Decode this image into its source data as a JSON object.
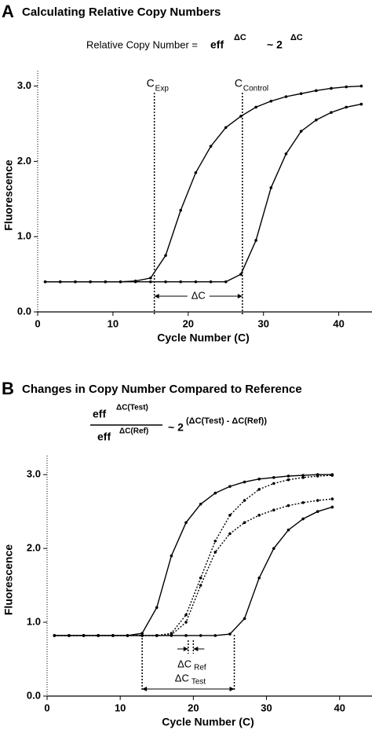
{
  "chart_data": [
    {
      "type": "line",
      "panel": "A",
      "title": "Calculating Relative Copy Numbers",
      "formula": [
        "Relative Copy Number =",
        "eff",
        "ΔC",
        "~ 2",
        "ΔC"
      ],
      "x_label": "Cycle Number (C)",
      "y_label": "Fluorescence",
      "xlim": [
        0,
        44
      ],
      "ylim": [
        0,
        3.1
      ],
      "xticks": [
        0,
        10,
        20,
        30,
        40
      ],
      "yticks": [
        {
          "value": 0,
          "label": "0.0"
        },
        {
          "value": 1,
          "label": "1.0"
        },
        {
          "value": 2,
          "label": "2.0"
        },
        {
          "value": 3,
          "label": "3.0"
        }
      ],
      "x": [
        1,
        3,
        5,
        7,
        9,
        11,
        13,
        15,
        17,
        19,
        21,
        23,
        25,
        27,
        29,
        31,
        33,
        35,
        37,
        39,
        41,
        43
      ],
      "series": [
        {
          "color": "#000000",
          "dash": "solid",
          "values": [
            0.4,
            0.4,
            0.4,
            0.4,
            0.4,
            0.4,
            0.41,
            0.45,
            0.75,
            1.35,
            1.85,
            2.2,
            2.45,
            2.6,
            2.72,
            2.8,
            2.86,
            2.9,
            2.94,
            2.97,
            2.99,
            3.0
          ]
        },
        {
          "color": "#000000",
          "dash": "solid",
          "values": [
            0.4,
            0.4,
            0.4,
            0.4,
            0.4,
            0.4,
            0.4,
            0.4,
            0.4,
            0.4,
            0.4,
            0.4,
            0.4,
            0.5,
            0.95,
            1.65,
            2.1,
            2.4,
            2.55,
            2.65,
            2.72,
            2.76
          ]
        }
      ],
      "markers": [
        {
          "x": 15.5,
          "label": "C",
          "sub": "Exp"
        },
        {
          "x": 27.2,
          "label": "C",
          "sub": "Control"
        }
      ],
      "spans": [
        {
          "from": 15.5,
          "to": 27.2,
          "label": "ΔC",
          "arrows": "outward"
        }
      ]
    },
    {
      "type": "line",
      "panel": "B",
      "title": "Changes in Copy Number Compared to Reference",
      "formula": [
        "eff",
        "ΔC(Test)",
        "eff",
        "ΔC(Ref)",
        "~ 2",
        "(ΔC(Test) - ΔC(Ref))"
      ],
      "x_label": "Cycle Number (C)",
      "y_label": "Fluorescence",
      "xlim": [
        0,
        44
      ],
      "ylim": [
        0,
        3.15
      ],
      "xticks": [
        0,
        10,
        20,
        30,
        40
      ],
      "yticks": [
        {
          "value": 0,
          "label": "0.0"
        },
        {
          "value": 1,
          "label": "1.0"
        },
        {
          "value": 2,
          "label": "2.0"
        },
        {
          "value": 3,
          "label": "3.0"
        }
      ],
      "x": [
        1,
        3,
        5,
        7,
        9,
        11,
        13,
        15,
        17,
        19,
        21,
        23,
        25,
        27,
        29,
        31,
        33,
        35,
        37,
        39
      ],
      "series": [
        {
          "color": "#000000",
          "dash": "solid",
          "values": [
            0.82,
            0.82,
            0.82,
            0.82,
            0.82,
            0.82,
            0.85,
            1.2,
            1.9,
            2.35,
            2.6,
            2.75,
            2.84,
            2.9,
            2.94,
            2.96,
            2.98,
            2.99,
            3.0,
            3.0
          ]
        },
        {
          "color": "#000000",
          "dash": "dotted",
          "values": [
            0.82,
            0.82,
            0.82,
            0.82,
            0.82,
            0.82,
            0.82,
            0.82,
            0.85,
            1.1,
            1.6,
            2.1,
            2.45,
            2.65,
            2.8,
            2.88,
            2.93,
            2.96,
            2.98,
            2.99
          ]
        },
        {
          "color": "#000000",
          "dash": "dotted",
          "values": [
            0.82,
            0.82,
            0.82,
            0.82,
            0.82,
            0.82,
            0.82,
            0.82,
            0.83,
            1.0,
            1.5,
            1.95,
            2.2,
            2.35,
            2.45,
            2.52,
            2.58,
            2.62,
            2.65,
            2.67
          ]
        },
        {
          "color": "#000000",
          "dash": "solid",
          "values": [
            0.82,
            0.82,
            0.82,
            0.82,
            0.82,
            0.82,
            0.82,
            0.82,
            0.82,
            0.82,
            0.82,
            0.82,
            0.84,
            1.05,
            1.6,
            2.0,
            2.25,
            2.4,
            2.5,
            2.56
          ]
        }
      ],
      "markers": [
        {
          "x": 13
        },
        {
          "x": 19.3
        },
        {
          "x": 20
        },
        {
          "x": 25.6
        }
      ],
      "spans": [
        {
          "from": 19.3,
          "to": 20,
          "label": "ΔC",
          "sub": "Ref",
          "arrows": "inward"
        },
        {
          "from": 13,
          "to": 25.6,
          "label": "ΔC",
          "sub": "Test",
          "arrows": "outward"
        }
      ]
    }
  ]
}
